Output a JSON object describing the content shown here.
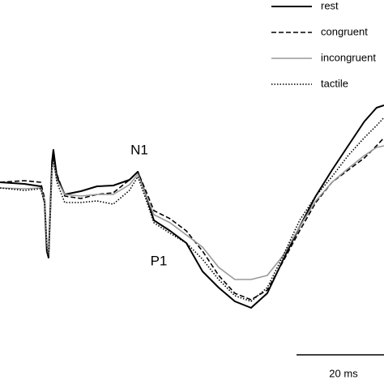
{
  "chart_data": {
    "type": "line",
    "x": [
      0,
      5.6,
      9.3,
      10.2,
      10.7,
      11.1,
      11.5,
      11.9,
      12.2,
      13,
      14.8,
      18.5,
      22.2,
      25.9,
      29.6,
      31.5,
      33.3,
      35.2,
      38.9,
      42.6,
      46.3,
      50,
      53.7,
      57.4,
      61.1,
      64.8,
      68.5,
      72.2,
      75.9,
      79.6,
      83.3,
      86.1,
      87.8
    ],
    "xlim": [
      0,
      87.8
    ],
    "ylim": [
      -24.6,
      22.8
    ],
    "series": [
      {
        "name": "rest",
        "color": "#000000",
        "dash": "solid",
        "values": [
          0.3,
          0.1,
          -0.2,
          -2.2,
          -8.2,
          -9.0,
          -3.2,
          2.8,
          4.3,
          1.0,
          -1.2,
          -0.8,
          -0.2,
          -0.1,
          0.6,
          1.6,
          -1.2,
          -4.4,
          -5.7,
          -7.2,
          -10.7,
          -12.7,
          -14.4,
          -15.2,
          -13.4,
          -9.2,
          -5.2,
          -1.4,
          1.8,
          4.8,
          7.8,
          9.5,
          9.8
        ]
      },
      {
        "name": "congruent",
        "color": "#000000",
        "dash": "dashed",
        "values": [
          0.3,
          0.5,
          0.3,
          -1.7,
          -7.7,
          -9.0,
          -3.2,
          2.3,
          3.3,
          1.3,
          -1.4,
          -1.7,
          -1.2,
          -1.0,
          0.6,
          1.6,
          -0.7,
          -3.2,
          -4.2,
          -5.7,
          -8.2,
          -11.2,
          -13.4,
          -14.2,
          -13.0,
          -9.4,
          -5.7,
          -2.2,
          0.3,
          1.8,
          3.3,
          4.8,
          5.8
        ]
      },
      {
        "name": "incongruent",
        "color": "#999999",
        "dash": "solid",
        "values": [
          -0.4,
          -0.5,
          -0.4,
          -2.0,
          -7.2,
          -8.7,
          -3.4,
          1.8,
          2.8,
          0.6,
          -1.2,
          -1.4,
          -1.2,
          -1.2,
          0,
          1.3,
          -1.2,
          -3.7,
          -4.7,
          -6.2,
          -7.7,
          -10.2,
          -11.7,
          -11.7,
          -11.2,
          -8.7,
          -5.2,
          -2.0,
          0.3,
          2.0,
          3.6,
          4.6,
          4.8
        ]
      },
      {
        "name": "tactile",
        "color": "#000000",
        "dash": "dotted",
        "values": [
          -0.4,
          -0.7,
          -0.5,
          -2.2,
          -7.7,
          -9.0,
          -3.0,
          2.3,
          3.3,
          0.3,
          -2.2,
          -2.2,
          -2.0,
          -2.4,
          -0.7,
          1.0,
          -1.7,
          -4.7,
          -6.0,
          -7.2,
          -9.2,
          -11.7,
          -13.7,
          -14.4,
          -12.7,
          -8.7,
          -4.4,
          -1.4,
          1.0,
          3.6,
          5.8,
          7.3,
          8.3
        ]
      }
    ],
    "annotations": [
      "N1",
      "P1"
    ],
    "scale_bar": {
      "value": 20,
      "label": "20 ms"
    }
  }
}
